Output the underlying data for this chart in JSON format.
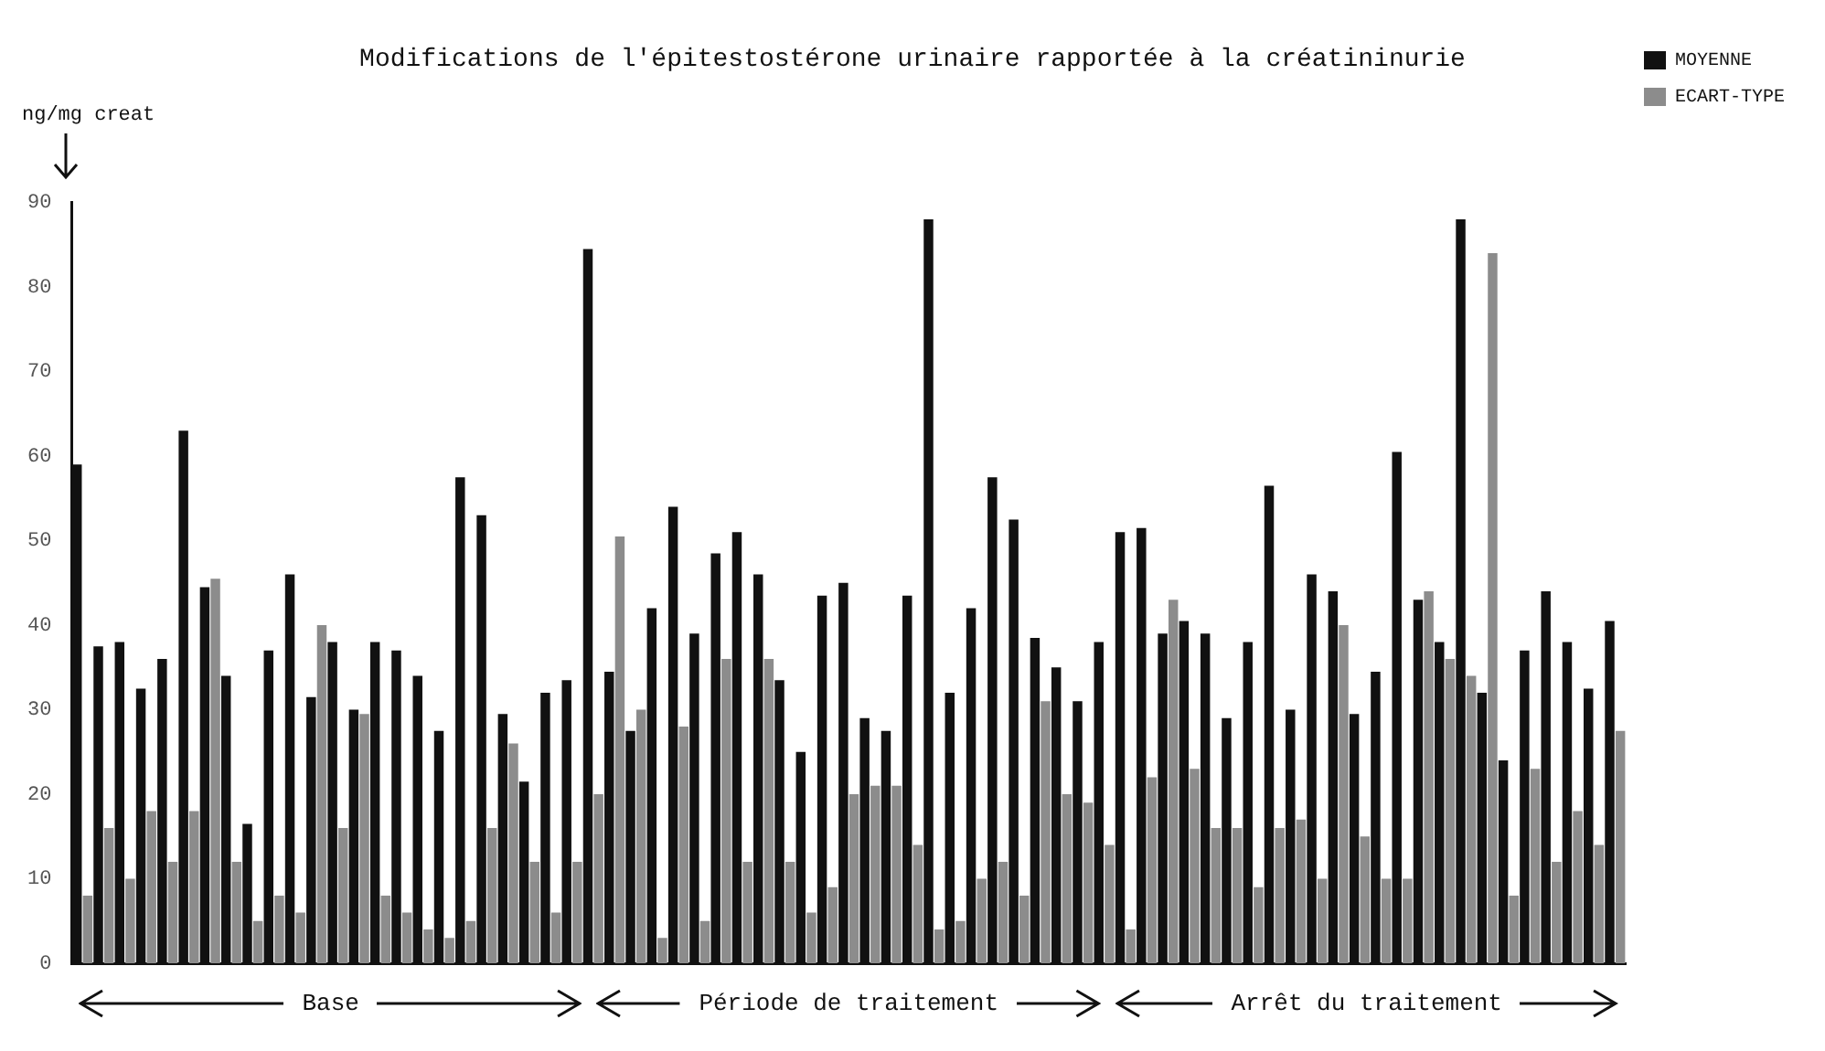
{
  "chart_data": {
    "type": "bar",
    "title": "Modifications de l'épitestostérone urinaire rapportée à la créatininurie",
    "ylabel": "ng/mg creat",
    "categories": [
      null,
      null,
      null,
      null,
      null,
      null,
      null,
      null,
      null,
      null,
      null,
      null,
      null,
      null,
      null,
      null,
      null,
      null,
      null,
      null,
      null,
      null,
      null,
      null,
      null,
      null,
      null,
      null,
      null,
      null,
      null,
      null,
      null,
      null,
      null,
      null,
      null,
      null,
      null,
      null,
      null,
      null,
      null,
      null,
      null,
      null,
      null,
      null,
      null,
      null,
      null,
      null,
      null,
      null,
      null,
      null,
      null,
      null,
      null,
      null,
      null,
      null,
      null,
      null,
      null,
      null,
      null,
      null,
      null,
      null,
      null,
      null,
      null
    ],
    "series": [
      {
        "name": "MOYENNE",
        "color": "#111111",
        "values": [
          59,
          37.5,
          38,
          32.5,
          36,
          63,
          44.5,
          34,
          16.5,
          37,
          46,
          31.5,
          38,
          30,
          38,
          37,
          34,
          27.5,
          57.5,
          53,
          29.5,
          21.5,
          32,
          33.5,
          84.5,
          34.5,
          27.5,
          42,
          54,
          39,
          48.5,
          51,
          46,
          33.5,
          25,
          43.5,
          45,
          29,
          27.5,
          43.5,
          88,
          32,
          42,
          57.5,
          52.5,
          38.5,
          35,
          31,
          38,
          51,
          51.5,
          39,
          40.5,
          39,
          29,
          38,
          56.5,
          30,
          46,
          44,
          29.5,
          34.5,
          60.5,
          43,
          38,
          88,
          32,
          24,
          37,
          44,
          38,
          32.5,
          40.5
        ]
      },
      {
        "name": "ECART-TYPE",
        "color": "#8c8c8c",
        "values": [
          8,
          16,
          10,
          18,
          12,
          18,
          45.5,
          12,
          5,
          8,
          6,
          40,
          16,
          29.5,
          8,
          6,
          4,
          3,
          5,
          16,
          26,
          12,
          6,
          12,
          20,
          50.5,
          30,
          3,
          28,
          5,
          36,
          12,
          36,
          12,
          6,
          9,
          20,
          21,
          21,
          14,
          4,
          5,
          10,
          12,
          8,
          31,
          20,
          19,
          14,
          4,
          22,
          43,
          23,
          16,
          16,
          9,
          16,
          17,
          10,
          40,
          15,
          10,
          10,
          44,
          36,
          34,
          84,
          8,
          23,
          12,
          18,
          14,
          27.5
        ]
      }
    ],
    "ylim": [
      0,
      90
    ],
    "yticks": [
      0,
      10,
      20,
      30,
      40,
      50,
      60,
      70,
      80,
      90
    ],
    "grid": false,
    "legend": "top right",
    "annotations": [
      "Base",
      "Période de traitement",
      "Arrêt du traitement"
    ]
  }
}
